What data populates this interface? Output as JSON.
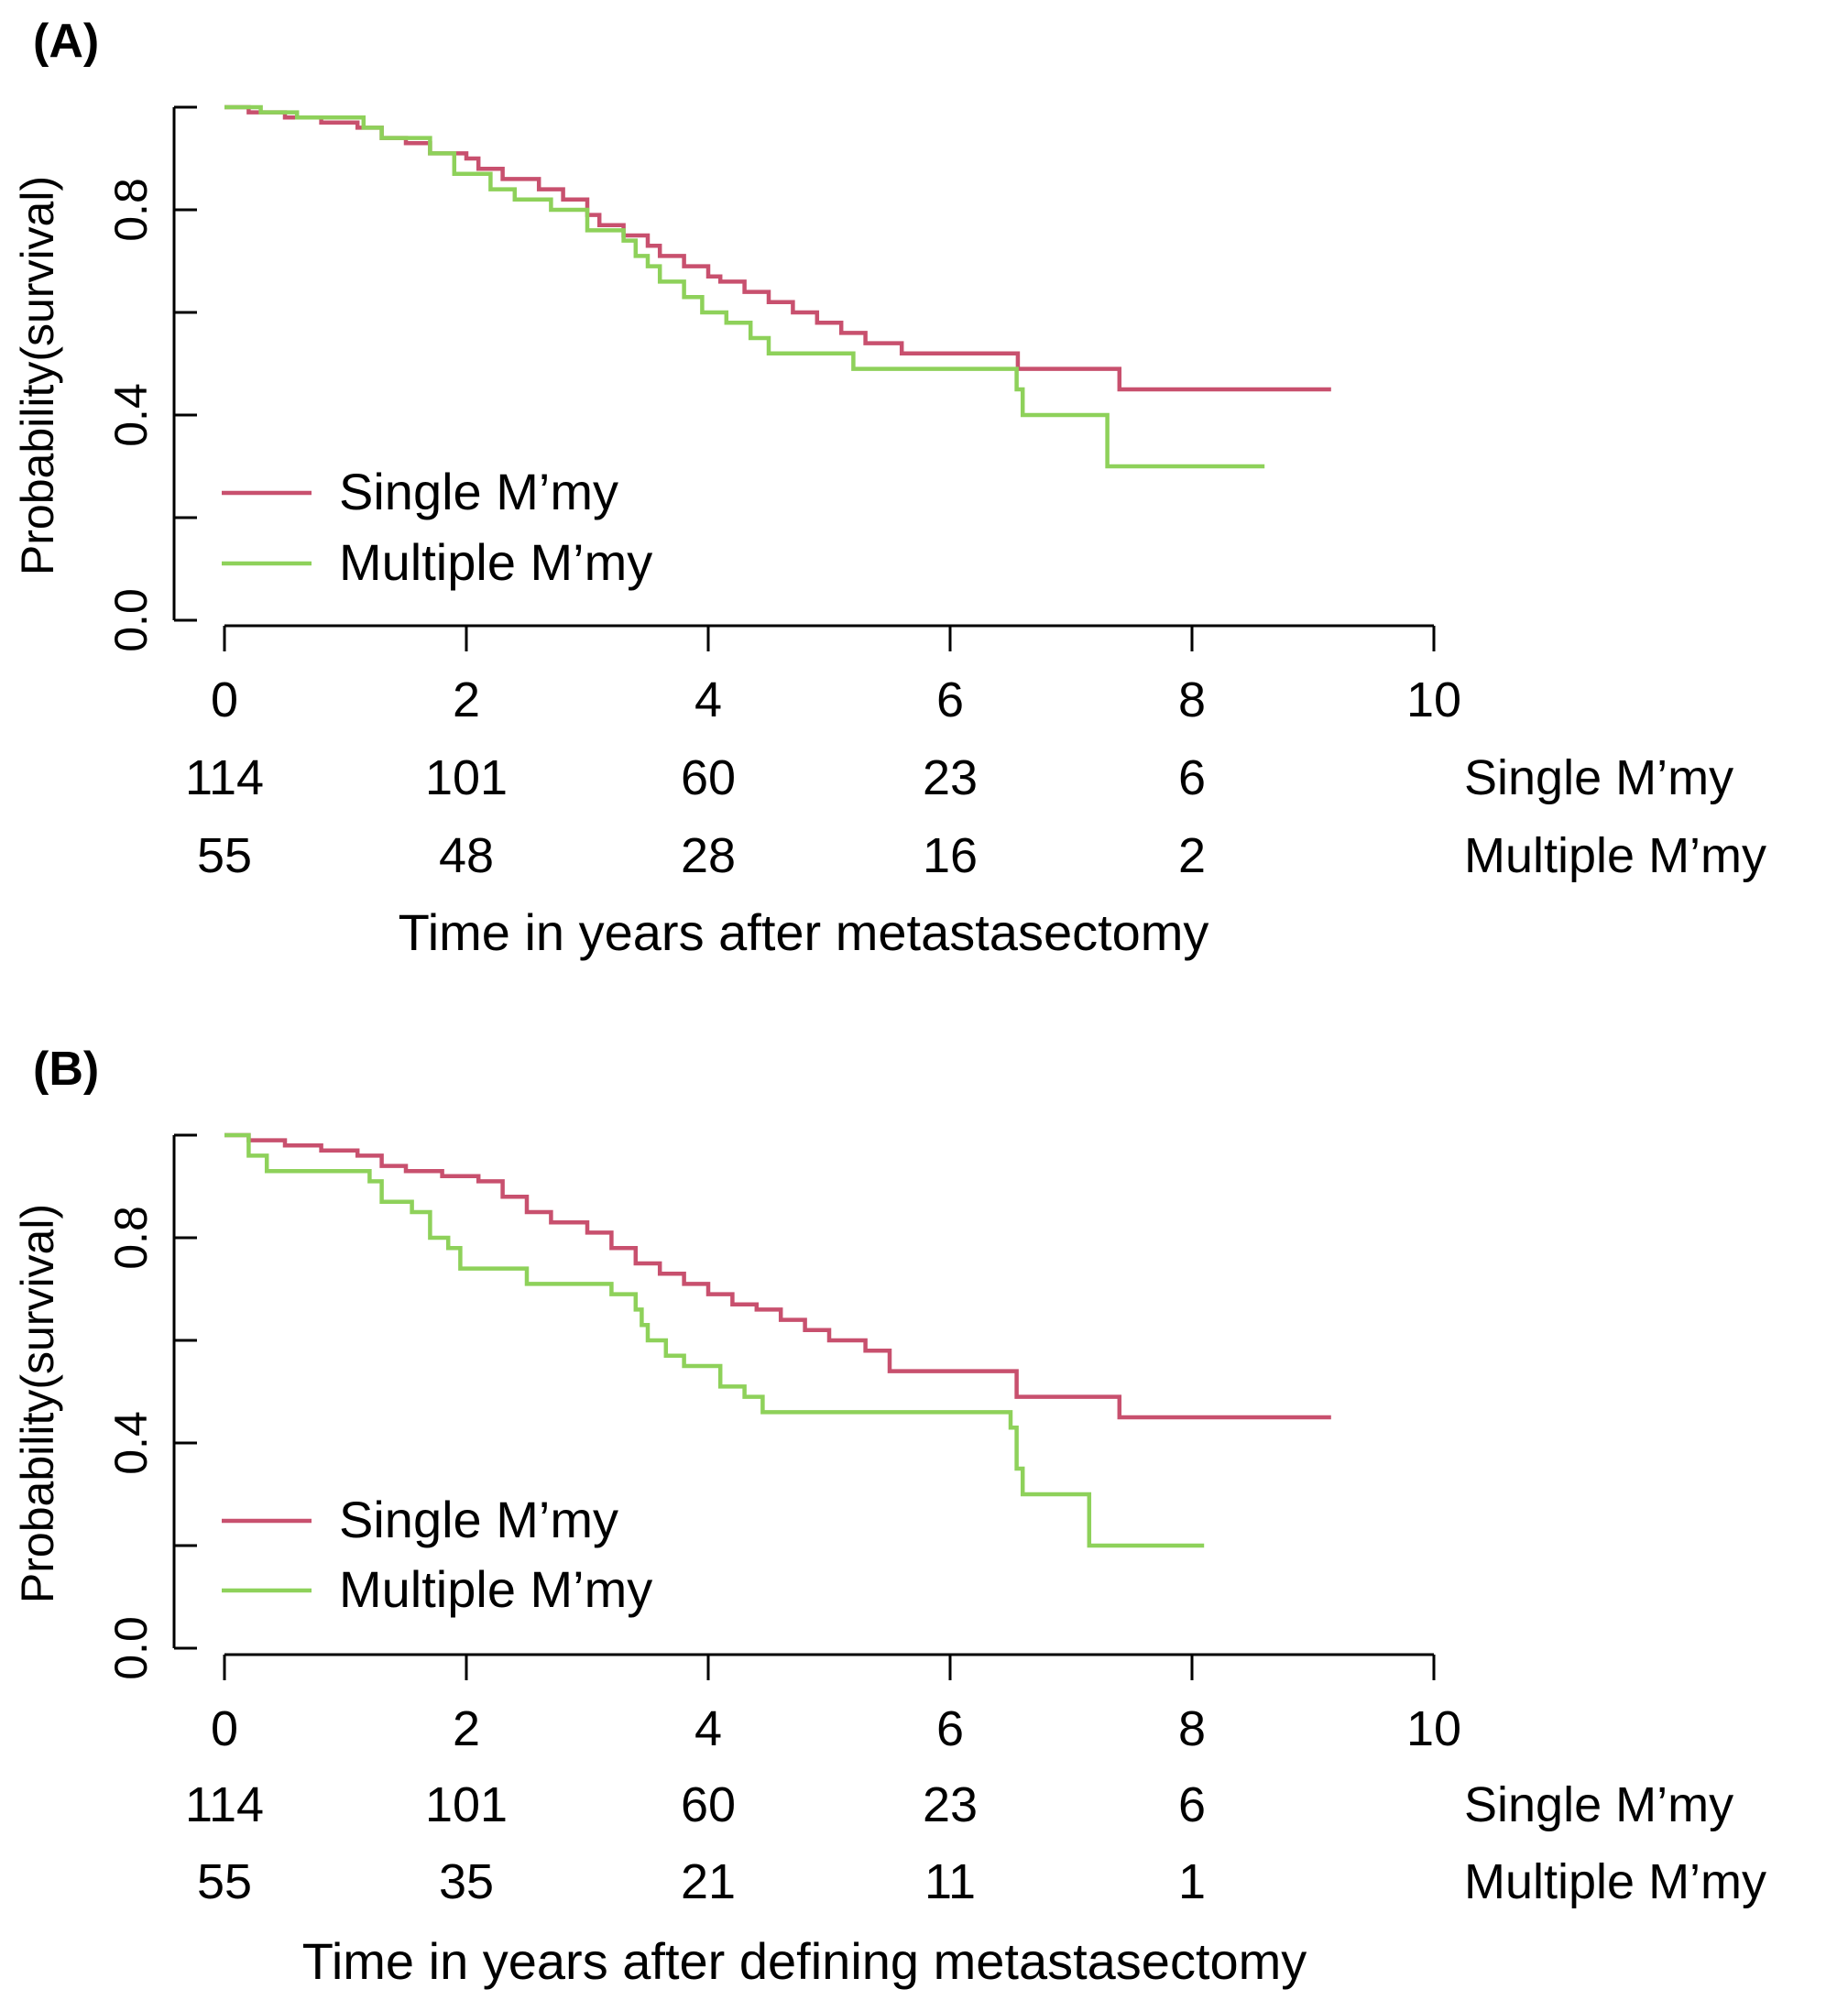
{
  "colors": {
    "single": "#C8506E",
    "multiple": "#8ED15A"
  },
  "chart_data": [
    {
      "panel_label": "(A)",
      "type": "line",
      "title": "",
      "xlabel": "Time in years after metastasectomy",
      "ylabel": "Probability(survival)",
      "xlim": [
        0,
        10
      ],
      "ylim": [
        0,
        1
      ],
      "x_ticks": [
        0,
        2,
        4,
        6,
        8,
        10
      ],
      "y_tick_labels": [
        "0.0",
        "0.4",
        "0.8"
      ],
      "legend": {
        "placement": "bottom-left",
        "entries": [
          "Single M’my",
          "Multiple M’my"
        ]
      },
      "series": [
        {
          "name": "Single M’my",
          "color_key": "single",
          "x": [
            0,
            0.2,
            0.5,
            0.8,
            1.1,
            1.3,
            1.5,
            1.7,
            2.0,
            2.1,
            2.3,
            2.6,
            2.8,
            3.0,
            3.1,
            3.3,
            3.5,
            3.6,
            3.8,
            4.0,
            4.1,
            4.3,
            4.5,
            4.7,
            4.9,
            5.1,
            5.3,
            5.6,
            6.56,
            7.4,
            9.15
          ],
          "y": [
            1.0,
            0.99,
            0.98,
            0.97,
            0.96,
            0.94,
            0.93,
            0.91,
            0.9,
            0.88,
            0.86,
            0.84,
            0.82,
            0.79,
            0.77,
            0.75,
            0.73,
            0.71,
            0.69,
            0.67,
            0.66,
            0.64,
            0.62,
            0.6,
            0.58,
            0.56,
            0.54,
            0.52,
            0.49,
            0.45,
            0.45
          ]
        },
        {
          "name": "Multiple M’my",
          "color_key": "multiple",
          "x": [
            0,
            0.3,
            0.6,
            1.15,
            1.3,
            1.7,
            1.9,
            2.2,
            2.4,
            2.7,
            3.0,
            3.3,
            3.4,
            3.5,
            3.6,
            3.8,
            3.95,
            4.15,
            4.35,
            4.5,
            5.2,
            6.55,
            6.6,
            7.3,
            8.6
          ],
          "y": [
            1.0,
            0.99,
            0.98,
            0.96,
            0.94,
            0.91,
            0.87,
            0.84,
            0.82,
            0.8,
            0.76,
            0.74,
            0.71,
            0.69,
            0.66,
            0.63,
            0.6,
            0.58,
            0.55,
            0.52,
            0.49,
            0.45,
            0.4,
            0.3,
            0.3
          ]
        }
      ],
      "risk_table": [
        {
          "label": "Single M’my",
          "counts": [
            "114",
            "101",
            "60",
            "23",
            "6"
          ]
        },
        {
          "label": "Multiple M’my",
          "counts": [
            "55",
            "48",
            "28",
            "16",
            "2"
          ]
        }
      ]
    },
    {
      "panel_label": "(B)",
      "type": "line",
      "title": "",
      "xlabel": "Time in years after defining metastasectomy",
      "ylabel": "Probability(survival)",
      "xlim": [
        0,
        10
      ],
      "ylim": [
        0,
        1
      ],
      "x_ticks": [
        0,
        2,
        4,
        6,
        8,
        10
      ],
      "y_tick_labels": [
        "0.0",
        "0.4",
        "0.8"
      ],
      "legend": {
        "placement": "bottom-left",
        "entries": [
          "Single M’my",
          "Multiple M’my"
        ]
      },
      "series": [
        {
          "name": "Single M’my",
          "color_key": "single",
          "x": [
            0,
            0.2,
            0.5,
            0.8,
            1.1,
            1.3,
            1.5,
            1.8,
            2.1,
            2.3,
            2.5,
            2.7,
            3.0,
            3.2,
            3.4,
            3.6,
            3.8,
            4.0,
            4.2,
            4.4,
            4.6,
            4.8,
            5.0,
            5.3,
            5.5,
            6.55,
            7.4,
            9.15
          ],
          "y": [
            1.0,
            0.99,
            0.98,
            0.97,
            0.96,
            0.94,
            0.93,
            0.92,
            0.91,
            0.88,
            0.85,
            0.83,
            0.81,
            0.78,
            0.75,
            0.73,
            0.71,
            0.69,
            0.67,
            0.66,
            0.64,
            0.62,
            0.6,
            0.58,
            0.54,
            0.49,
            0.45,
            0.45
          ]
        },
        {
          "name": "Multiple M’my",
          "color_key": "multiple",
          "x": [
            0,
            0.2,
            0.35,
            1.2,
            1.3,
            1.55,
            1.7,
            1.85,
            1.95,
            2.5,
            3.2,
            3.4,
            3.45,
            3.5,
            3.65,
            3.8,
            4.1,
            4.3,
            4.45,
            6.5,
            6.55,
            6.6,
            7.15,
            8.1
          ],
          "y": [
            1.0,
            0.96,
            0.93,
            0.91,
            0.87,
            0.85,
            0.8,
            0.78,
            0.74,
            0.71,
            0.69,
            0.66,
            0.63,
            0.6,
            0.57,
            0.55,
            0.51,
            0.49,
            0.46,
            0.43,
            0.35,
            0.3,
            0.2,
            0.2
          ]
        }
      ],
      "risk_table": [
        {
          "label": "Single M’my",
          "counts": [
            "114",
            "101",
            "60",
            "23",
            "6"
          ]
        },
        {
          "label": "Multiple M’my",
          "counts": [
            "55",
            "35",
            "21",
            "11",
            "1"
          ]
        }
      ]
    }
  ]
}
